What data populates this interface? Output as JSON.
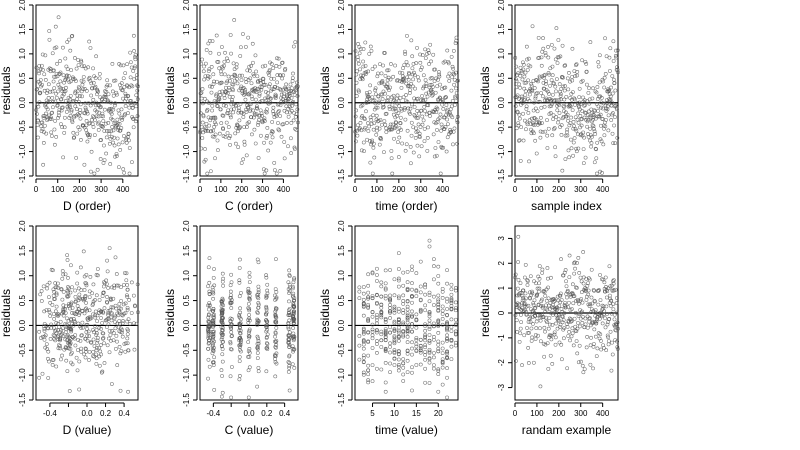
{
  "colors": {
    "background": "#ffffff",
    "points": "#555555",
    "lines": "#000000"
  },
  "chart_data": [
    {
      "type": "scatter",
      "panel": "p1",
      "xlabel": "D (order)",
      "ylabel": "residuals",
      "xlim": [
        0,
        470
      ],
      "ylim": [
        -1.5,
        2.0
      ],
      "xticks": [
        0,
        100,
        200,
        300,
        400
      ],
      "xtick_labels": [
        "0",
        "100",
        "200",
        "300",
        "400"
      ],
      "yticks": [
        -1.5,
        -1.0,
        -0.5,
        0.0,
        0.5,
        1.0,
        1.5,
        2.0
      ],
      "ytick_labels": [
        "-1.5",
        "-1.0",
        "-0.5",
        "0.0",
        "0.5",
        "1.0",
        "1.5",
        "2.0"
      ],
      "hline": 0,
      "n_points": 470,
      "x_kind": "order",
      "pattern": "wave",
      "spread": 0.55,
      "seed": 11
    },
    {
      "type": "scatter",
      "panel": "p2",
      "xlabel": "C (order)",
      "ylabel": "residuals",
      "xlim": [
        0,
        470
      ],
      "ylim": [
        -1.5,
        2.0
      ],
      "xticks": [
        0,
        100,
        200,
        300,
        400
      ],
      "xtick_labels": [
        "0",
        "100",
        "200",
        "300",
        "400"
      ],
      "yticks": [
        -1.5,
        -1.0,
        -0.5,
        0.0,
        0.5,
        1.0,
        1.5,
        2.0
      ],
      "ytick_labels": [
        "-1.5",
        "-1.0",
        "-0.5",
        "0.0",
        "0.5",
        "1.0",
        "1.5",
        "2.0"
      ],
      "hline": 0,
      "n_points": 470,
      "x_kind": "order",
      "pattern": "flat",
      "spread": 0.55,
      "seed": 23
    },
    {
      "type": "scatter",
      "panel": "p3",
      "xlabel": "time (order)",
      "ylabel": "residuals",
      "xlim": [
        0,
        470
      ],
      "ylim": [
        -1.5,
        2.0
      ],
      "xticks": [
        0,
        100,
        200,
        300,
        400
      ],
      "xtick_labels": [
        "0",
        "100",
        "200",
        "300",
        "400"
      ],
      "yticks": [
        -1.5,
        -1.0,
        -0.5,
        0.0,
        0.5,
        1.0,
        1.5,
        2.0
      ],
      "ytick_labels": [
        "-1.5",
        "-1.0",
        "-0.5",
        "0.0",
        "0.5",
        "1.0",
        "1.5",
        "2.0"
      ],
      "hline": 0,
      "n_points": 470,
      "x_kind": "order",
      "pattern": "blocks",
      "spread": 0.55,
      "seed": 37
    },
    {
      "type": "scatter",
      "panel": "p4",
      "xlabel": "sample index",
      "ylabel": "residuals",
      "xlim": [
        0,
        470
      ],
      "ylim": [
        -1.5,
        2.0
      ],
      "xticks": [
        0,
        100,
        200,
        300,
        400
      ],
      "xtick_labels": [
        "0",
        "100",
        "200",
        "300",
        "400"
      ],
      "yticks": [
        -1.5,
        -1.0,
        -0.5,
        0.0,
        0.5,
        1.0,
        1.5,
        2.0
      ],
      "ytick_labels": [
        "-1.5",
        "-1.0",
        "-0.5",
        "0.0",
        "0.5",
        "1.0",
        "1.5",
        "2.0"
      ],
      "hline": 0,
      "n_points": 470,
      "x_kind": "order",
      "pattern": "wave",
      "spread": 0.55,
      "seed": 41
    },
    {
      "type": "scatter",
      "panel": "p5",
      "xlabel": "D (value)",
      "ylabel": "residuals",
      "xlim": [
        -0.55,
        0.55
      ],
      "ylim": [
        -1.5,
        2.0
      ],
      "xticks": [
        -0.4,
        -0.2,
        0.0,
        0.2,
        0.4
      ],
      "xtick_labels": [
        "-0.4",
        "",
        "0.0",
        "0.2",
        "0.4"
      ],
      "yticks": [
        -1.5,
        -1.0,
        -0.5,
        0.0,
        0.5,
        1.0,
        1.5,
        2.0
      ],
      "ytick_labels": [
        "-1.5",
        "-1.0",
        "-0.5",
        "0.0",
        "0.5",
        "1.0",
        "1.5",
        "2.0"
      ],
      "hline": 0,
      "n_points": 470,
      "x_kind": "value",
      "pattern": "hump",
      "spread": 0.55,
      "seed": 53
    },
    {
      "type": "scatter",
      "panel": "p6",
      "xlabel": "C (value)",
      "ylabel": "residuals",
      "xlim": [
        -0.55,
        0.55
      ],
      "ylim": [
        -1.5,
        2.0
      ],
      "xticks": [
        -0.4,
        -0.2,
        0.0,
        0.2,
        0.4
      ],
      "xtick_labels": [
        "-0.4",
        "",
        "0.0",
        "0.2",
        "0.4"
      ],
      "yticks": [
        -1.5,
        -1.0,
        -0.5,
        0.0,
        0.5,
        1.0,
        1.5,
        2.0
      ],
      "ytick_labels": [
        "-1.5",
        "-1.0",
        "-0.5",
        "0.0",
        "0.5",
        "1.0",
        "1.5",
        "2.0"
      ],
      "hline": 0,
      "n_points": 470,
      "x_kind": "value",
      "pattern": "flat",
      "spread": 0.5,
      "seed": 67
    },
    {
      "type": "scatter",
      "panel": "p7",
      "xlabel": "time (value)",
      "ylabel": "residuals",
      "xlim": [
        1,
        24.5
      ],
      "ylim": [
        -1.5,
        2.0
      ],
      "xticks": [
        5,
        10,
        15,
        20
      ],
      "xtick_labels": [
        "5",
        "10",
        "15",
        "20"
      ],
      "yticks": [
        -1.5,
        -1.0,
        -0.5,
        0.0,
        0.5,
        1.0,
        1.5,
        2.0
      ],
      "ytick_labels": [
        "-1.5",
        "-1.0",
        "-0.5",
        "0.0",
        "0.5",
        "1.0",
        "1.5",
        "2.0"
      ],
      "hline": 0,
      "n_points": 470,
      "x_kind": "value",
      "pattern": "flat",
      "spread": 0.55,
      "seed": 79
    },
    {
      "type": "scatter",
      "panel": "p8",
      "xlabel": "randam example",
      "ylabel": "residuals",
      "xlim": [
        0,
        470
      ],
      "ylim": [
        -3.5,
        3.5
      ],
      "xticks": [
        0,
        100,
        200,
        300,
        400
      ],
      "xtick_labels": [
        "0",
        "100",
        "200",
        "300",
        "400"
      ],
      "yticks": [
        -3,
        -2,
        -1,
        0,
        1,
        2,
        3
      ],
      "ytick_labels": [
        "-3",
        "-2",
        "-1",
        "0",
        "1",
        "2",
        "3"
      ],
      "hline": 0,
      "n_points": 470,
      "x_kind": "order",
      "pattern": "flat",
      "spread": 1.0,
      "seed": 97
    }
  ]
}
